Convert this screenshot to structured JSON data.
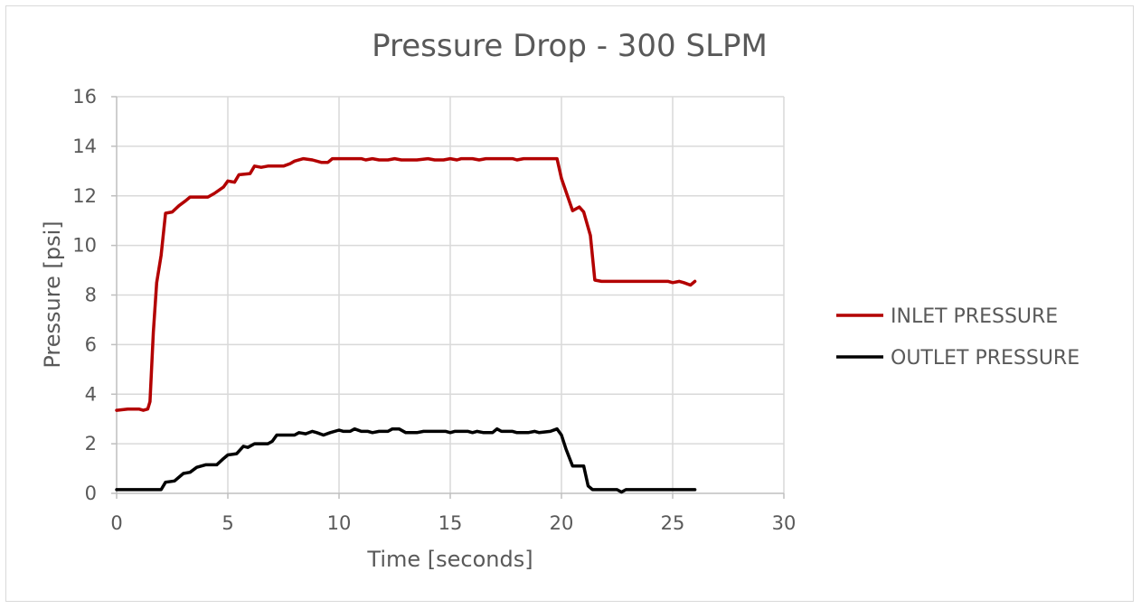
{
  "chart_data": {
    "type": "line",
    "title": "Pressure Drop - 300 SLPM",
    "xlabel": "Time [seconds]",
    "ylabel": "Pressure [psi]",
    "xlim": [
      0,
      30
    ],
    "ylim": [
      0,
      16
    ],
    "xticks": [
      "0",
      "5",
      "10",
      "15",
      "20",
      "25",
      "30"
    ],
    "yticks": [
      "0",
      "2",
      "4",
      "6",
      "8",
      "10",
      "12",
      "14",
      "16"
    ],
    "grid": true,
    "legend_position": "right",
    "series": [
      {
        "name": "INLET PRESSURE",
        "color": "#b30000",
        "points": [
          [
            0,
            3.35
          ],
          [
            0.5,
            3.4
          ],
          [
            1.0,
            3.4
          ],
          [
            1.2,
            3.35
          ],
          [
            1.4,
            3.4
          ],
          [
            1.5,
            3.7
          ],
          [
            1.65,
            6.5
          ],
          [
            1.8,
            8.5
          ],
          [
            2.0,
            9.6
          ],
          [
            2.2,
            11.3
          ],
          [
            2.5,
            11.35
          ],
          [
            2.8,
            11.6
          ],
          [
            3.1,
            11.8
          ],
          [
            3.3,
            11.95
          ],
          [
            3.6,
            11.95
          ],
          [
            4.1,
            11.95
          ],
          [
            4.4,
            12.1
          ],
          [
            4.8,
            12.35
          ],
          [
            5.0,
            12.6
          ],
          [
            5.3,
            12.55
          ],
          [
            5.5,
            12.85
          ],
          [
            6.0,
            12.9
          ],
          [
            6.2,
            13.2
          ],
          [
            6.5,
            13.15
          ],
          [
            6.8,
            13.2
          ],
          [
            7.5,
            13.2
          ],
          [
            7.8,
            13.3
          ],
          [
            8.0,
            13.4
          ],
          [
            8.4,
            13.5
          ],
          [
            8.8,
            13.45
          ],
          [
            9.2,
            13.35
          ],
          [
            9.5,
            13.35
          ],
          [
            9.7,
            13.5
          ],
          [
            10.5,
            13.5
          ],
          [
            11.0,
            13.5
          ],
          [
            11.2,
            13.45
          ],
          [
            11.5,
            13.5
          ],
          [
            11.8,
            13.45
          ],
          [
            12.2,
            13.45
          ],
          [
            12.5,
            13.5
          ],
          [
            12.8,
            13.45
          ],
          [
            13.5,
            13.45
          ],
          [
            14.0,
            13.5
          ],
          [
            14.3,
            13.45
          ],
          [
            14.7,
            13.45
          ],
          [
            15.0,
            13.5
          ],
          [
            15.3,
            13.45
          ],
          [
            15.5,
            13.5
          ],
          [
            16.0,
            13.5
          ],
          [
            16.3,
            13.45
          ],
          [
            16.6,
            13.5
          ],
          [
            17.5,
            13.5
          ],
          [
            17.8,
            13.5
          ],
          [
            18.0,
            13.45
          ],
          [
            18.3,
            13.5
          ],
          [
            19.0,
            13.5
          ],
          [
            19.8,
            13.5
          ],
          [
            20.0,
            12.7
          ],
          [
            20.5,
            11.4
          ],
          [
            20.8,
            11.55
          ],
          [
            21.0,
            11.35
          ],
          [
            21.3,
            10.4
          ],
          [
            21.5,
            8.6
          ],
          [
            21.8,
            8.55
          ],
          [
            22.5,
            8.55
          ],
          [
            23.5,
            8.55
          ],
          [
            24.5,
            8.55
          ],
          [
            24.8,
            8.55
          ],
          [
            25.0,
            8.5
          ],
          [
            25.3,
            8.55
          ],
          [
            25.5,
            8.5
          ],
          [
            25.8,
            8.4
          ],
          [
            26.0,
            8.55
          ]
        ]
      },
      {
        "name": "OUTLET PRESSURE",
        "color": "#000000",
        "points": [
          [
            0,
            0.15
          ],
          [
            1.0,
            0.15
          ],
          [
            2.0,
            0.15
          ],
          [
            2.2,
            0.45
          ],
          [
            2.6,
            0.5
          ],
          [
            3.0,
            0.8
          ],
          [
            3.3,
            0.85
          ],
          [
            3.6,
            1.05
          ],
          [
            4.0,
            1.15
          ],
          [
            4.5,
            1.15
          ],
          [
            4.8,
            1.4
          ],
          [
            5.0,
            1.55
          ],
          [
            5.4,
            1.6
          ],
          [
            5.7,
            1.9
          ],
          [
            5.9,
            1.85
          ],
          [
            6.2,
            2.0
          ],
          [
            6.8,
            2.0
          ],
          [
            7.0,
            2.1
          ],
          [
            7.2,
            2.35
          ],
          [
            7.8,
            2.35
          ],
          [
            8.0,
            2.35
          ],
          [
            8.2,
            2.45
          ],
          [
            8.5,
            2.4
          ],
          [
            8.8,
            2.5
          ],
          [
            9.0,
            2.45
          ],
          [
            9.3,
            2.35
          ],
          [
            9.6,
            2.45
          ],
          [
            10.0,
            2.55
          ],
          [
            10.2,
            2.5
          ],
          [
            10.5,
            2.5
          ],
          [
            10.7,
            2.6
          ],
          [
            11.0,
            2.5
          ],
          [
            11.3,
            2.5
          ],
          [
            11.5,
            2.45
          ],
          [
            11.8,
            2.5
          ],
          [
            12.2,
            2.5
          ],
          [
            12.4,
            2.6
          ],
          [
            12.7,
            2.6
          ],
          [
            13.0,
            2.45
          ],
          [
            13.5,
            2.45
          ],
          [
            13.8,
            2.5
          ],
          [
            14.5,
            2.5
          ],
          [
            14.8,
            2.5
          ],
          [
            15.0,
            2.45
          ],
          [
            15.2,
            2.5
          ],
          [
            15.8,
            2.5
          ],
          [
            16.0,
            2.45
          ],
          [
            16.2,
            2.5
          ],
          [
            16.5,
            2.45
          ],
          [
            16.9,
            2.45
          ],
          [
            17.1,
            2.6
          ],
          [
            17.3,
            2.5
          ],
          [
            17.8,
            2.5
          ],
          [
            18.0,
            2.45
          ],
          [
            18.5,
            2.45
          ],
          [
            18.8,
            2.5
          ],
          [
            19.0,
            2.45
          ],
          [
            19.5,
            2.5
          ],
          [
            19.8,
            2.6
          ],
          [
            20.0,
            2.35
          ],
          [
            20.2,
            1.8
          ],
          [
            20.5,
            1.1
          ],
          [
            21.0,
            1.1
          ],
          [
            21.2,
            0.3
          ],
          [
            21.4,
            0.15
          ],
          [
            22.0,
            0.15
          ],
          [
            22.5,
            0.15
          ],
          [
            22.7,
            0.05
          ],
          [
            22.9,
            0.15
          ],
          [
            23.5,
            0.15
          ],
          [
            24.5,
            0.15
          ],
          [
            25.5,
            0.15
          ],
          [
            26.0,
            0.15
          ]
        ]
      }
    ]
  }
}
